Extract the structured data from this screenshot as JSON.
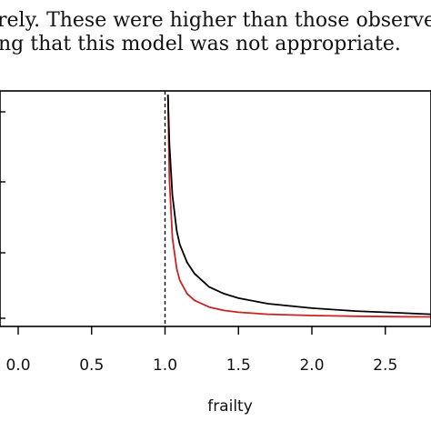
{
  "paragraph": {
    "lines": [
      "rely.  These were higher than those observed with",
      "rely.  These were higher than those observed with",
      "ng that this model was not appropriate."
    ]
  },
  "chart_data": {
    "type": "line",
    "xlabel": "frailty",
    "ylabel": "",
    "title": "",
    "xlim": [
      -0.1,
      2.85
    ],
    "ylim": [
      0,
      1
    ],
    "x_ticks": [
      "0.0",
      "0.5",
      "1.0",
      "1.5",
      "2.0",
      "2.5"
    ],
    "grid": false,
    "reference_line": {
      "x": 1.0,
      "style": "dashed",
      "color": "#000000"
    },
    "series": [
      {
        "color": "#000000",
        "x": [
          1.02,
          1.03,
          1.05,
          1.08,
          1.1,
          1.15,
          1.2,
          1.3,
          1.4,
          1.5,
          1.7,
          2.0,
          2.3,
          2.6,
          2.85
        ],
        "y": [
          1.0,
          0.78,
          0.55,
          0.39,
          0.33,
          0.25,
          0.2,
          0.14,
          0.11,
          0.09,
          0.065,
          0.045,
          0.032,
          0.024,
          0.018
        ]
      },
      {
        "color": "#cc2222",
        "x": [
          1.02,
          1.03,
          1.05,
          1.08,
          1.1,
          1.15,
          1.2,
          1.3,
          1.4,
          1.5,
          1.7,
          2.0,
          2.3,
          2.6,
          2.85
        ],
        "y": [
          1.0,
          0.62,
          0.36,
          0.22,
          0.17,
          0.11,
          0.08,
          0.05,
          0.035,
          0.027,
          0.018,
          0.012,
          0.009,
          0.007,
          0.006
        ]
      }
    ]
  }
}
